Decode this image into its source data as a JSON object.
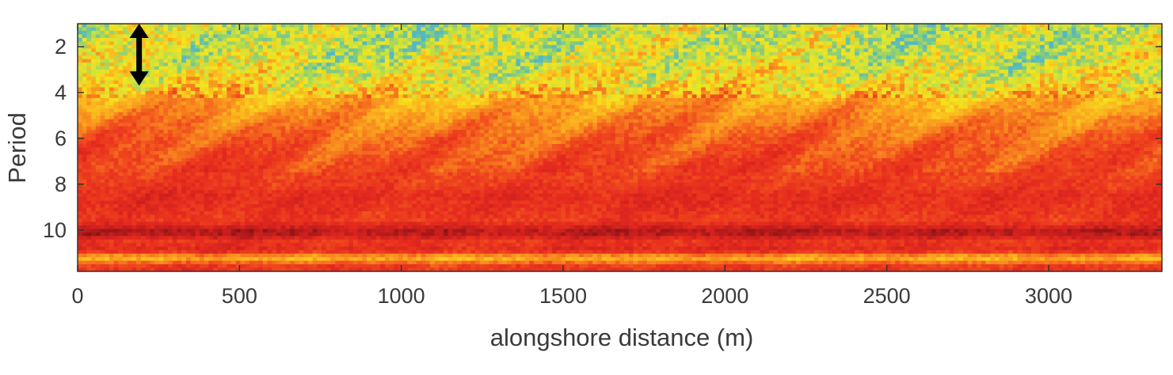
{
  "chart_data": {
    "type": "heatmap",
    "title": "",
    "xlabel": "alongshore distance (m)",
    "ylabel": "Period",
    "xlim": [
      0,
      3350
    ],
    "ylim": [
      1,
      11.8
    ],
    "y_reversed": true,
    "xticks": [
      0,
      500,
      1000,
      1500,
      2000,
      2500,
      3000
    ],
    "yticks": [
      2,
      4,
      6,
      8,
      10
    ],
    "colormap": [
      "#8c1414",
      "#c81e1e",
      "#e62b1e",
      "#f04a1e",
      "#f7821e",
      "#fbb41e",
      "#f5e41e",
      "#cfe23a",
      "#8fd070",
      "#54b8c4"
    ],
    "annotation": {
      "type": "double-arrow",
      "x": 190,
      "y_start": 1.0,
      "y_end": 3.7,
      "color": "#000000"
    },
    "row_profile": [
      {
        "y": 1.5,
        "level": 0.78
      },
      {
        "y": 2.5,
        "level": 0.76
      },
      {
        "y": 3.5,
        "level": 0.68
      },
      {
        "y": 4.2,
        "level": 0.55
      },
      {
        "y": 5.0,
        "level": 0.47
      },
      {
        "y": 6.0,
        "level": 0.38
      },
      {
        "y": 7.0,
        "level": 0.32
      },
      {
        "y": 8.0,
        "level": 0.28
      },
      {
        "y": 8.5,
        "level": 0.22
      },
      {
        "y": 9.0,
        "level": 0.24
      },
      {
        "y": 9.6,
        "level": 0.28
      },
      {
        "y": 10.1,
        "level": 0.05
      },
      {
        "y": 10.5,
        "level": 0.26
      },
      {
        "y": 10.9,
        "level": 0.2
      },
      {
        "y": 11.2,
        "level": 0.58
      },
      {
        "y": 11.6,
        "level": 0.26
      }
    ]
  }
}
